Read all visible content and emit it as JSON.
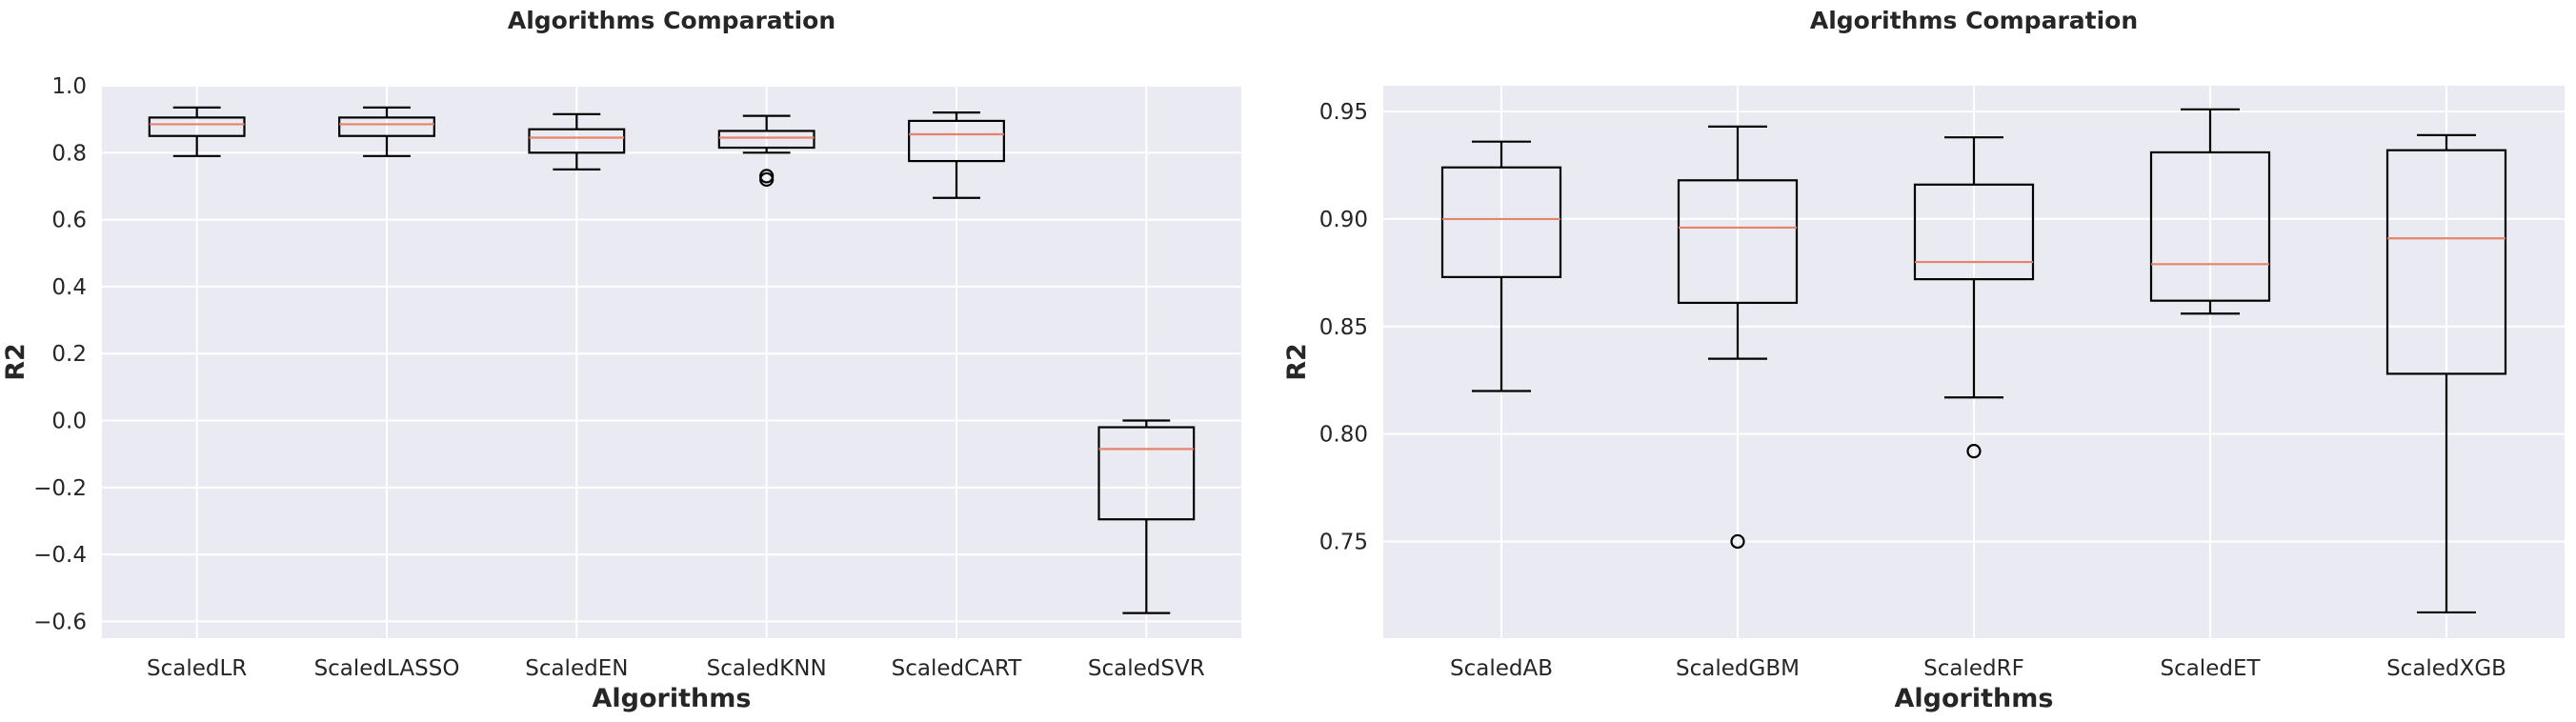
{
  "chart_data": [
    {
      "type": "box",
      "title": "Algorithms Comparation",
      "xlabel": "Algorithms",
      "ylabel": "R2",
      "ylim": [
        -0.65,
        1.0
      ],
      "yticks": [
        -0.6,
        -0.4,
        -0.2,
        0.0,
        0.2,
        0.4,
        0.6,
        0.8,
        1.0
      ],
      "ytick_labels": [
        "−0.6",
        "−0.4",
        "−0.2",
        "0.0",
        "0.2",
        "0.4",
        "0.6",
        "0.8",
        "1.0"
      ],
      "grid": true,
      "categories": [
        "ScaledLR",
        "ScaledLASSO",
        "ScaledEN",
        "ScaledKNN",
        "ScaledCART",
        "ScaledSVR"
      ],
      "boxes": [
        {
          "whisker_low": 0.79,
          "q1": 0.85,
          "median": 0.885,
          "q3": 0.905,
          "whisker_high": 0.935,
          "outliers": []
        },
        {
          "whisker_low": 0.79,
          "q1": 0.85,
          "median": 0.885,
          "q3": 0.905,
          "whisker_high": 0.935,
          "outliers": []
        },
        {
          "whisker_low": 0.75,
          "q1": 0.8,
          "median": 0.845,
          "q3": 0.87,
          "whisker_high": 0.915,
          "outliers": []
        },
        {
          "whisker_low": 0.8,
          "q1": 0.815,
          "median": 0.845,
          "q3": 0.865,
          "whisker_high": 0.91,
          "outliers": [
            0.72,
            0.73
          ]
        },
        {
          "whisker_low": 0.665,
          "q1": 0.775,
          "median": 0.855,
          "q3": 0.895,
          "whisker_high": 0.92,
          "outliers": []
        },
        {
          "whisker_low": -0.575,
          "q1": -0.295,
          "median": -0.085,
          "q3": -0.02,
          "whisker_high": 0.0,
          "outliers": []
        }
      ]
    },
    {
      "type": "box",
      "title": "Algorithms Comparation",
      "xlabel": "Algorithms",
      "ylabel": "R2",
      "ylim": [
        0.705,
        0.962
      ],
      "yticks": [
        0.75,
        0.8,
        0.85,
        0.9,
        0.95
      ],
      "ytick_labels": [
        "0.75",
        "0.80",
        "0.85",
        "0.90",
        "0.95"
      ],
      "grid": true,
      "categories": [
        "ScaledAB",
        "ScaledGBM",
        "ScaledRF",
        "ScaledET",
        "ScaledXGB"
      ],
      "boxes": [
        {
          "whisker_low": 0.82,
          "q1": 0.873,
          "median": 0.9,
          "q3": 0.924,
          "whisker_high": 0.936,
          "outliers": []
        },
        {
          "whisker_low": 0.835,
          "q1": 0.861,
          "median": 0.896,
          "q3": 0.918,
          "whisker_high": 0.943,
          "outliers": [
            0.75
          ]
        },
        {
          "whisker_low": 0.817,
          "q1": 0.872,
          "median": 0.88,
          "q3": 0.916,
          "whisker_high": 0.938,
          "outliers": [
            0.792
          ]
        },
        {
          "whisker_low": 0.856,
          "q1": 0.862,
          "median": 0.879,
          "q3": 0.931,
          "whisker_high": 0.951,
          "outliers": []
        },
        {
          "whisker_low": 0.717,
          "q1": 0.828,
          "median": 0.891,
          "q3": 0.932,
          "whisker_high": 0.939,
          "outliers": []
        }
      ]
    }
  ]
}
